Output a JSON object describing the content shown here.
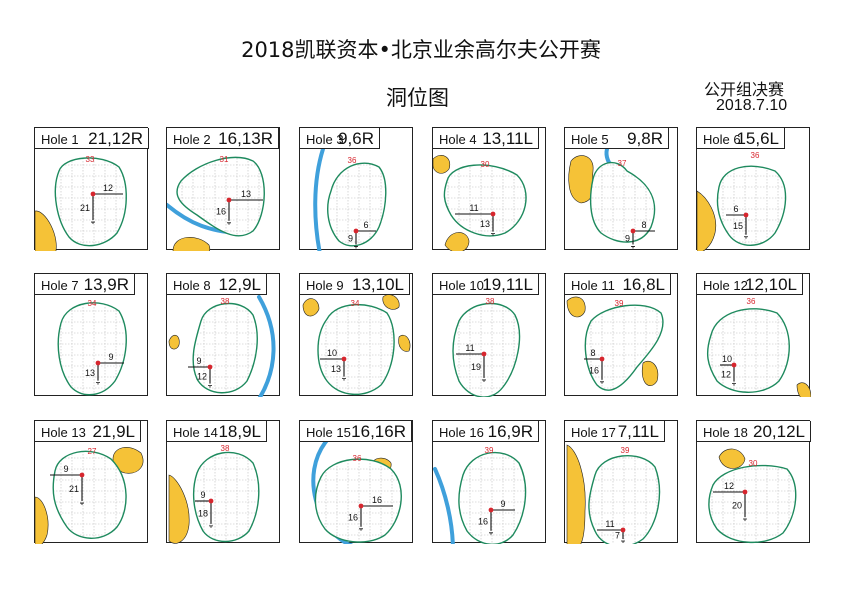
{
  "title": "2018凯联资本•北京业余高尔夫公开赛",
  "subtitle": "洞位图",
  "round": "公开组决赛",
  "date": "2018.7.10",
  "colors": {
    "green_outline": "#1e8a5e",
    "bunker": "#f5c237",
    "water": "#3fa0db",
    "pin": "#d7262e",
    "depth_label": "#d7262e",
    "grid": "#bdbdbd"
  },
  "holes": [
    {
      "label": "Hole 1",
      "pin": "21,12R",
      "depth": "33",
      "a": "21",
      "b": "12"
    },
    {
      "label": "Hole 2",
      "pin": "16,13R",
      "depth": "31",
      "a": "16",
      "b": "13"
    },
    {
      "label": "Hole 3",
      "pin": "9,6R",
      "depth": "36",
      "a": "9",
      "b": "6"
    },
    {
      "label": "Hole 4",
      "pin": "13,11L",
      "depth": "30",
      "a": "13",
      "b": "11"
    },
    {
      "label": "Hole 5",
      "pin": "9,8R",
      "depth": "37",
      "a": "9",
      "b": "8"
    },
    {
      "label": "Hole 6",
      "pin": "15,6L",
      "depth": "36",
      "a": "15",
      "b": "6"
    },
    {
      "label": "Hole 7",
      "pin": "13,9R",
      "depth": "34",
      "a": "13",
      "b": "9"
    },
    {
      "label": "Hole 8",
      "pin": "12,9L",
      "depth": "38",
      "a": "12",
      "b": "9"
    },
    {
      "label": "Hole 9",
      "pin": "13,10L",
      "depth": "34",
      "a": "13",
      "b": "10"
    },
    {
      "label": "Hole 10",
      "pin": "19,11L",
      "depth": "38",
      "a": "19",
      "b": "11"
    },
    {
      "label": "Hole 11",
      "pin": "16,8L",
      "depth": "39",
      "a": "16",
      "b": "8"
    },
    {
      "label": "Hole 12",
      "pin": "12,10L",
      "depth": "36",
      "a": "12",
      "b": "10"
    },
    {
      "label": "Hole 13",
      "pin": "21,9L",
      "depth": "27",
      "a": "21",
      "b": "9"
    },
    {
      "label": "Hole 14",
      "pin": "18,9L",
      "depth": "38",
      "a": "18",
      "b": "9"
    },
    {
      "label": "Hole 15",
      "pin": "16,16R",
      "depth": "36",
      "a": "16",
      "b": "16"
    },
    {
      "label": "Hole 16",
      "pin": "16,9R",
      "depth": "39",
      "a": "16",
      "b": "9"
    },
    {
      "label": "Hole 17",
      "pin": "7,11L",
      "depth": "39",
      "a": "7",
      "b": "11"
    },
    {
      "label": "Hole 18",
      "pin": "20,12L",
      "depth": "30",
      "a": "20",
      "b": "12"
    }
  ]
}
